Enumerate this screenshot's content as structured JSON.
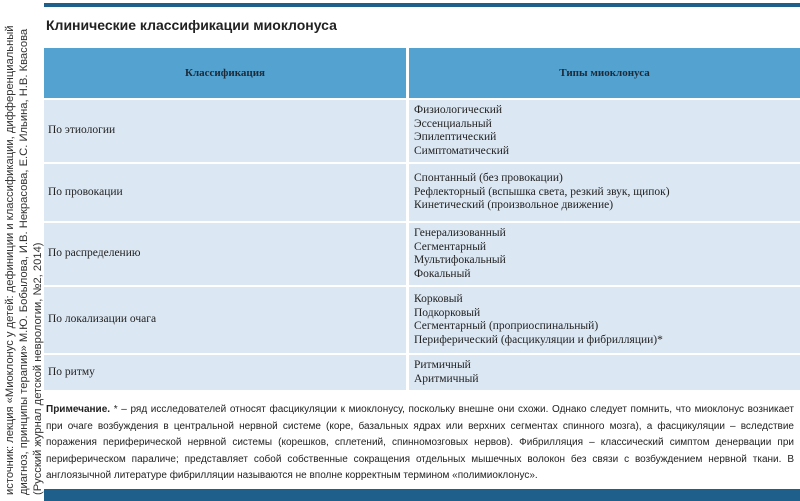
{
  "source": "источник: лекция «Миоклонус у детей: дефиниции и классификации, дифференциальный диагноз, принципы терапии» М.Ю. Бобылова, И.В. Некрасова, Е.С. Ильина, Н.В. Квасова (Русский журнал детской неврологии, №2, 2014)",
  "title": "Клинические классификации миоклонуса",
  "table": {
    "headers": [
      "Классификация",
      "Типы миоклонуса"
    ],
    "rows": [
      {
        "category": "По этиологии",
        "types": [
          "Физиологический",
          "Эссенциальный",
          "Эпилептический",
          "Симптоматический"
        ]
      },
      {
        "category": "По провокации",
        "types": [
          "Спонтанный (без провокации)",
          "Рефлекторный (вспышка света, резкий звук, щипок)",
          "Кинетический (произвольное движение)"
        ]
      },
      {
        "category": "По распределению",
        "types": [
          "Генерализованный",
          "Сегментарный",
          "Мультифокальный",
          "Фокальный"
        ]
      },
      {
        "category": "По локализации очага",
        "types": [
          "Корковый",
          "Подкорковый",
          "Сегментарный (проприоспинальный)",
          "Периферический (фасцикуляции и фибрилляции)*"
        ]
      },
      {
        "category": "По ритму",
        "types": [
          "Ритмичный",
          "Аритмичный"
        ]
      }
    ]
  },
  "note": {
    "label": "Примечание.",
    "text": " * – ряд исследователей относят фасцикуляции к миоклонусу, поскольку внешне они схожи. Однако следует помнить, что миоклонус возникает при очаге возбуждения в центральной нервной системе (коре, базальных ядрах или верхних сегментах спинного мозга), а фасцикуляции – вследствие поражения периферической нервной системы (корешков, сплетений, спинномозговых нервов). Фибрилляция – классический симптом денервации при периферическом параличе; представляет собой собственные сокращения отдельных мышечных волокон без связи с возбуждением нервной ткани. В англоязычной литературе фибрилляции называются не вполне корректным термином «полимиоклонус»."
  },
  "colors": {
    "bar": "#1f5f8b",
    "header": "#53a2d0",
    "row": "#dbe7f3"
  }
}
